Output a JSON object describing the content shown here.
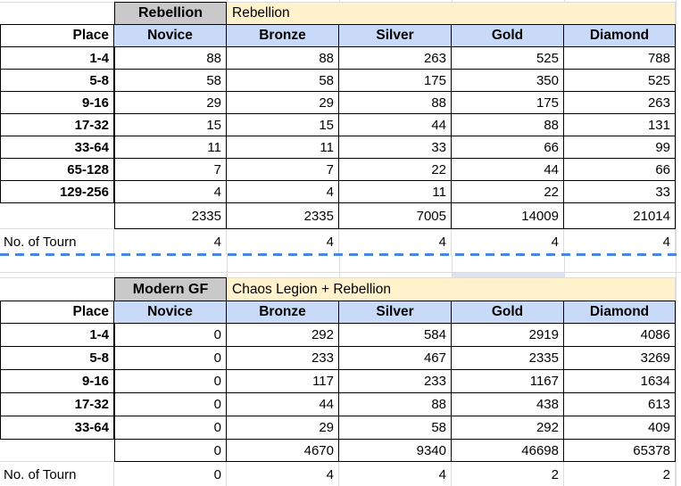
{
  "colors": {
    "header_blue": "#c9daf8",
    "tab_gray": "#c9c9c9",
    "note_yellow": "#fff2cc",
    "page_break_blue": "#4a86e8",
    "gridline_gray": "#dcdcdc",
    "highlight_fragment": "#dde4ef"
  },
  "page_break": {
    "style": "dashed-line"
  },
  "tables": [
    {
      "name": "rebellion",
      "banner": {
        "tab_label": "Rebellion",
        "note": "Rebellion"
      },
      "columns": [
        "Place",
        "Novice",
        "Bronze",
        "Silver",
        "Gold",
        "Diamond"
      ],
      "rows": [
        {
          "kind": "data",
          "label": "1-4",
          "values": [
            88,
            88,
            263,
            525,
            788
          ]
        },
        {
          "kind": "data",
          "label": "5-8",
          "values": [
            58,
            58,
            175,
            350,
            525
          ]
        },
        {
          "kind": "data",
          "label": "9-16",
          "values": [
            29,
            29,
            88,
            175,
            263
          ]
        },
        {
          "kind": "data",
          "label": "17-32",
          "values": [
            15,
            15,
            44,
            88,
            131
          ]
        },
        {
          "kind": "data",
          "label": "33-64",
          "values": [
            11,
            11,
            33,
            66,
            99
          ]
        },
        {
          "kind": "data",
          "label": "65-128",
          "values": [
            7,
            7,
            22,
            44,
            66
          ]
        },
        {
          "kind": "data",
          "label": "129-256",
          "values": [
            4,
            4,
            11,
            22,
            33
          ]
        },
        {
          "kind": "total",
          "label": "",
          "values": [
            2335,
            2335,
            7005,
            14009,
            21014
          ]
        },
        {
          "kind": "tourn",
          "label": "No. of Tourn",
          "values": [
            4,
            4,
            4,
            4,
            4
          ]
        }
      ]
    },
    {
      "name": "modern-gf",
      "banner": {
        "tab_label": "Modern GF",
        "note": "Chaos Legion + Rebellion"
      },
      "columns": [
        "Place",
        "Novice",
        "Bronze",
        "Silver",
        "Gold",
        "Diamond"
      ],
      "rows": [
        {
          "kind": "data",
          "label": "1-4",
          "values": [
            0,
            292,
            584,
            2919,
            4086
          ]
        },
        {
          "kind": "data",
          "label": "5-8",
          "values": [
            0,
            233,
            467,
            2335,
            3269
          ]
        },
        {
          "kind": "data",
          "label": "9-16",
          "values": [
            0,
            117,
            233,
            1167,
            1634
          ]
        },
        {
          "kind": "data",
          "label": "17-32",
          "values": [
            0,
            44,
            88,
            438,
            613
          ]
        },
        {
          "kind": "data",
          "label": "33-64",
          "values": [
            0,
            29,
            58,
            292,
            409
          ]
        },
        {
          "kind": "total",
          "label": "",
          "values": [
            0,
            4670,
            9340,
            46698,
            65378
          ]
        },
        {
          "kind": "tourn",
          "label": "No. of Tourn",
          "values": [
            0,
            4,
            4,
            2,
            2
          ]
        }
      ]
    }
  ]
}
